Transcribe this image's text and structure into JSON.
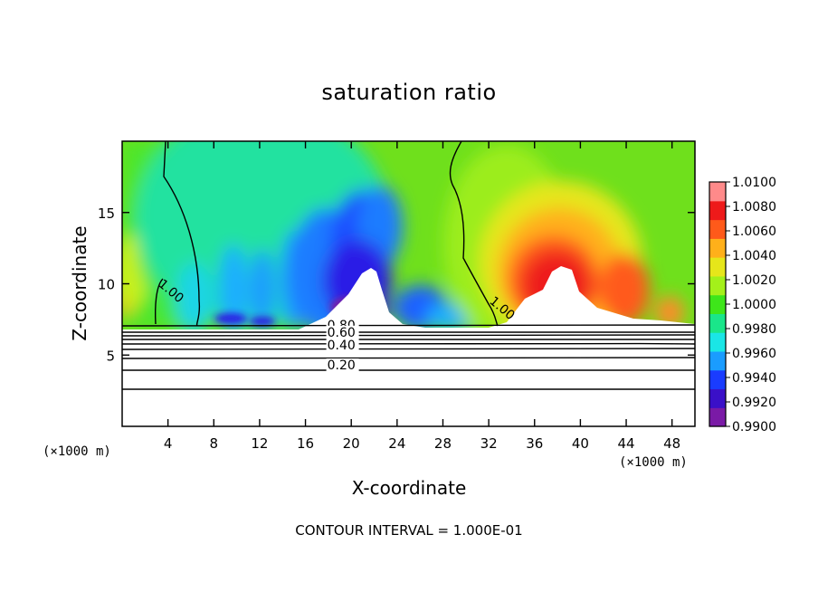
{
  "chart_data": {
    "type": "heatmap",
    "title": "saturation ratio",
    "xlabel": "X-coordinate",
    "ylabel": "Z-coordinate",
    "x_unit": "(×1000 m)",
    "y_unit": "(×1000 m)",
    "xlim": [
      0,
      50
    ],
    "ylim": [
      0,
      20
    ],
    "x_ticks": [
      4,
      8,
      12,
      16,
      20,
      24,
      28,
      32,
      36,
      40,
      44,
      48
    ],
    "y_ticks": [
      5,
      10,
      15
    ],
    "colorbar": {
      "min": 0.99,
      "max": 1.01,
      "levels": [
        "1.0100",
        "1.0080",
        "1.0060",
        "1.0040",
        "1.0020",
        "1.0000",
        "0.9980",
        "0.9960",
        "0.9940",
        "0.9920",
        "0.9900"
      ],
      "colors": [
        "#7a1aa6",
        "#3a10c8",
        "#1a3cff",
        "#1a9cff",
        "#1ae6e6",
        "#1ae68a",
        "#3ee61a",
        "#a4f01a",
        "#e6e61a",
        "#ffb01a",
        "#ff5a1a",
        "#ee1a1a",
        "#ff8a8a"
      ]
    },
    "contour_labels": [
      {
        "text": "1.00",
        "x": 3.1,
        "z": 9.9
      },
      {
        "text": "1.00",
        "x": 32.0,
        "z": 8.7
      },
      {
        "text": "0.80",
        "x": 17.9,
        "z": 6.8
      },
      {
        "text": "0.60",
        "x": 17.9,
        "z": 6.3
      },
      {
        "text": "0.40",
        "x": 17.9,
        "z": 5.4
      },
      {
        "text": "0.20",
        "x": 17.9,
        "z": 4.0
      }
    ],
    "footer": "CONTOUR INTERVAL = 1.000E-01"
  }
}
